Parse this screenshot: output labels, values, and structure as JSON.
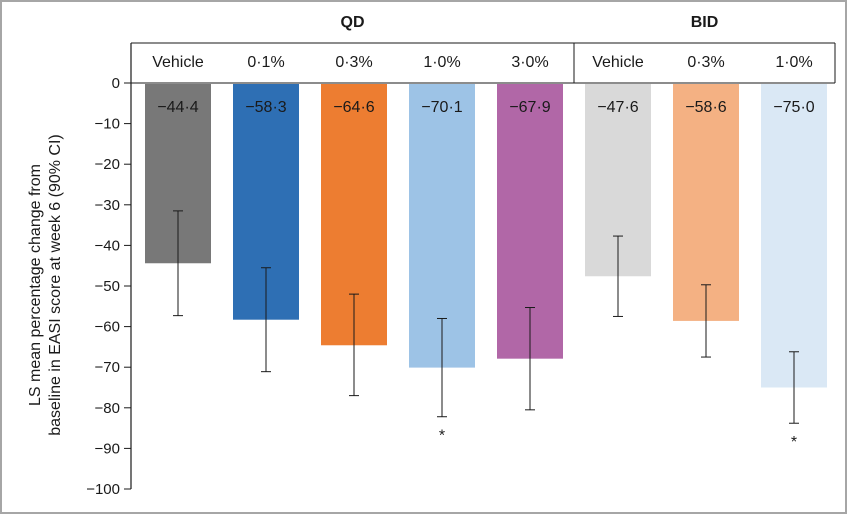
{
  "chart_data": {
    "type": "bar",
    "ylabel_lines": [
      "LS mean percentage change from",
      "baseline in EASI score at week 6 (90% CI)"
    ],
    "ylim": [
      -100,
      0
    ],
    "yticks": [
      0,
      -10,
      -20,
      -30,
      -40,
      -50,
      -60,
      -70,
      -80,
      -90,
      -100
    ],
    "ytick_labels": [
      "0",
      "−10",
      "−20",
      "−30",
      "−40",
      "−50",
      "−60",
      "−70",
      "−80",
      "−90",
      "−100"
    ],
    "groups": [
      {
        "label": "QD",
        "start": 0,
        "end": 4
      },
      {
        "label": "BID",
        "start": 5,
        "end": 7
      }
    ],
    "categories": [
      "Vehicle",
      "0·1%",
      "0·3%",
      "1·0%",
      "3·0%",
      "Vehicle",
      "0·3%",
      "1·0%"
    ],
    "values": [
      -44.4,
      -58.3,
      -64.6,
      -70.1,
      -67.9,
      -47.6,
      -58.6,
      -75.0
    ],
    "value_labels": [
      "−44·4",
      "−58·3",
      "−64·6",
      "−70·1",
      "−67·9",
      "−47·6",
      "−58·6",
      "−75·0"
    ],
    "ci_upper": [
      -31.5,
      -45.5,
      -52.0,
      -58.0,
      -55.3,
      -37.7,
      -49.7,
      -66.2
    ],
    "ci_lower": [
      -57.3,
      -71.1,
      -77.0,
      -82.2,
      -80.5,
      -57.5,
      -67.5,
      -83.8
    ],
    "significance": [
      "",
      "",
      "",
      "*",
      "",
      "",
      "",
      "*"
    ],
    "colors": [
      "#787878",
      "#2e6fb4",
      "#ed7d31",
      "#9dc3e6",
      "#b167a7",
      "#d9d9d9",
      "#f4b183",
      "#dae8f5"
    ],
    "grid": false,
    "legend": "none"
  }
}
